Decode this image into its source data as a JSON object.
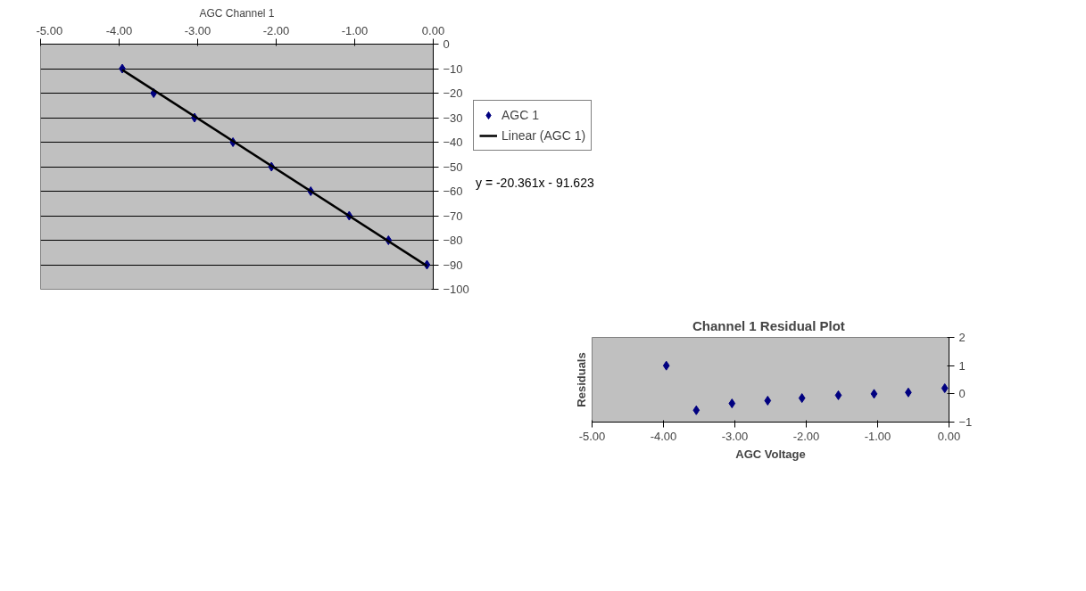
{
  "chart_data": [
    {
      "type": "scatter",
      "title": "AGC Channel 1",
      "xlim": [
        -5,
        0
      ],
      "xticks": [
        {
          "value": -5,
          "label": "-5.00"
        },
        {
          "value": -4,
          "label": "-4.00"
        },
        {
          "value": -3,
          "label": "-3.00"
        },
        {
          "value": -2,
          "label": "-2.00"
        },
        {
          "value": -1,
          "label": "-1.00"
        },
        {
          "value": 0,
          "label": "0.00"
        }
      ],
      "ylim": [
        -100,
        0
      ],
      "yticks": [
        0,
        -10,
        -20,
        -30,
        -40,
        -50,
        -60,
        -70,
        -80,
        -90,
        -100
      ],
      "grid": "y",
      "legend": "right",
      "series": [
        {
          "name": "AGC 1",
          "marker": "diamond",
          "color": "#000080",
          "x": [
            -3.96,
            -3.56,
            -3.04,
            -2.55,
            -2.06,
            -1.56,
            -1.07,
            -0.57,
            -0.08
          ],
          "values": [
            -10,
            -20,
            -30,
            -40,
            -50,
            -60,
            -70,
            -80,
            -90
          ]
        },
        {
          "name": "Linear (AGC 1)",
          "type": "line",
          "color": "#000000",
          "x": [
            -3.96,
            -0.08
          ],
          "values": [
            -10.5,
            -90.5
          ]
        }
      ],
      "annotations": [
        "y = -20.361x - 91.623"
      ]
    },
    {
      "type": "scatter",
      "title": "Channel 1  Residual Plot",
      "xlabel": "AGC Voltage",
      "ylabel": "Residuals",
      "xlim": [
        -5,
        0
      ],
      "xticks": [
        {
          "value": -5,
          "label": "-5.00"
        },
        {
          "value": -4,
          "label": "-4.00"
        },
        {
          "value": -3,
          "label": "-3.00"
        },
        {
          "value": -2,
          "label": "-2.00"
        },
        {
          "value": -1,
          "label": "-1.00"
        },
        {
          "value": 0,
          "label": "0.00"
        }
      ],
      "ylim": [
        -1,
        2
      ],
      "yticks": [
        -1,
        0,
        1,
        2
      ],
      "grid": false,
      "marker": "diamond",
      "series": [
        {
          "color": "#000080",
          "x": [
            -3.96,
            -3.54,
            -3.04,
            -2.54,
            -2.06,
            -1.55,
            -1.05,
            -0.57,
            -0.06
          ],
          "values": [
            1.0,
            -0.58,
            -0.34,
            -0.24,
            -0.15,
            -0.05,
            0.0,
            0.05,
            0.2
          ]
        }
      ]
    }
  ]
}
